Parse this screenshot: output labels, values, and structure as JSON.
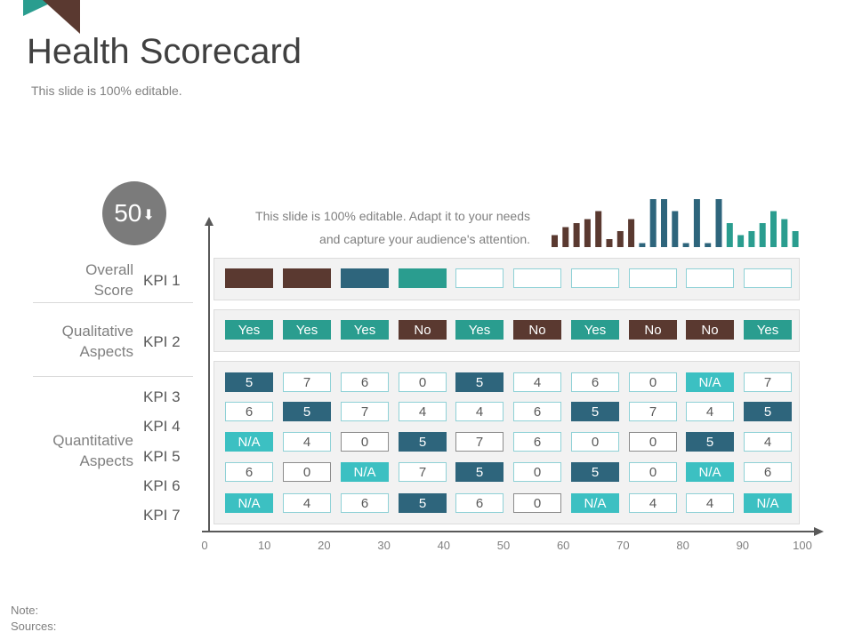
{
  "title": "Health Scorecard",
  "subtitle": "This slide is 100% editable.",
  "score": {
    "value": "50",
    "arrow": "⬇"
  },
  "description": {
    "line1": "This slide is 100% editable. Adapt it to your needs",
    "line2": "and capture your audience's attention."
  },
  "categories": {
    "overall": {
      "line1": "Overall",
      "line2": "Score"
    },
    "qualitative": {
      "line1": "Qualitative",
      "line2": "Aspects"
    },
    "quantitative": {
      "line1": "Quantitative",
      "line2": "Aspects"
    }
  },
  "kpis": [
    "KPI 1",
    "KPI 2",
    "KPI 3",
    "KPI 4",
    "KPI 5",
    "KPI 6",
    "KPI 7"
  ],
  "colors": {
    "teal": "#2a9d8f",
    "brown": "#5a3930",
    "navy": "#2e657c",
    "aqua": "#3cc0c2",
    "outline": "#8fd1d6",
    "gray_outline": "#8c8c8c"
  },
  "kpi1_row": [
    "brown",
    "brown",
    "navy",
    "teal",
    "outline",
    "outline",
    "outline",
    "outline",
    "outline",
    "outline"
  ],
  "kpi2_row": [
    {
      "text": "Yes",
      "style": "teal"
    },
    {
      "text": "Yes",
      "style": "teal"
    },
    {
      "text": "Yes",
      "style": "teal"
    },
    {
      "text": "No",
      "style": "brown"
    },
    {
      "text": "Yes",
      "style": "teal"
    },
    {
      "text": "No",
      "style": "brown"
    },
    {
      "text": "Yes",
      "style": "teal"
    },
    {
      "text": "No",
      "style": "brown"
    },
    {
      "text": "No",
      "style": "brown"
    },
    {
      "text": "Yes",
      "style": "teal"
    }
  ],
  "quant_rows": [
    [
      {
        "text": "5",
        "style": "navy"
      },
      {
        "text": "7",
        "style": "outline"
      },
      {
        "text": "6",
        "style": "outline"
      },
      {
        "text": "0",
        "style": "outline"
      },
      {
        "text": "5",
        "style": "navy"
      },
      {
        "text": "4",
        "style": "outline"
      },
      {
        "text": "6",
        "style": "outline"
      },
      {
        "text": "0",
        "style": "outline"
      },
      {
        "text": "N/A",
        "style": "aqua"
      },
      {
        "text": "7",
        "style": "outline"
      }
    ],
    [
      {
        "text": "6",
        "style": "outline"
      },
      {
        "text": "5",
        "style": "navy"
      },
      {
        "text": "7",
        "style": "outline"
      },
      {
        "text": "4",
        "style": "outline"
      },
      {
        "text": "4",
        "style": "outline"
      },
      {
        "text": "6",
        "style": "outline"
      },
      {
        "text": "5",
        "style": "navy"
      },
      {
        "text": "7",
        "style": "outline"
      },
      {
        "text": "4",
        "style": "outline"
      },
      {
        "text": "5",
        "style": "navy"
      }
    ],
    [
      {
        "text": "N/A",
        "style": "aqua"
      },
      {
        "text": "4",
        "style": "outline"
      },
      {
        "text": "0",
        "style": "gray"
      },
      {
        "text": "5",
        "style": "navy"
      },
      {
        "text": "7",
        "style": "gray"
      },
      {
        "text": "6",
        "style": "outline"
      },
      {
        "text": "0",
        "style": "outline"
      },
      {
        "text": "0",
        "style": "gray"
      },
      {
        "text": "5",
        "style": "navy"
      },
      {
        "text": "4",
        "style": "outline"
      }
    ],
    [
      {
        "text": "6",
        "style": "outline"
      },
      {
        "text": "0",
        "style": "gray"
      },
      {
        "text": "N/A",
        "style": "aqua"
      },
      {
        "text": "7",
        "style": "outline"
      },
      {
        "text": "5",
        "style": "navy"
      },
      {
        "text": "0",
        "style": "outline"
      },
      {
        "text": "5",
        "style": "navy"
      },
      {
        "text": "0",
        "style": "outline"
      },
      {
        "text": "N/A",
        "style": "aqua"
      },
      {
        "text": "6",
        "style": "outline"
      }
    ],
    [
      {
        "text": "N/A",
        "style": "aqua"
      },
      {
        "text": "4",
        "style": "outline"
      },
      {
        "text": "6",
        "style": "outline"
      },
      {
        "text": "5",
        "style": "navy"
      },
      {
        "text": "6",
        "style": "outline"
      },
      {
        "text": "0",
        "style": "gray"
      },
      {
        "text": "N/A",
        "style": "aqua"
      },
      {
        "text": "4",
        "style": "outline"
      },
      {
        "text": "4",
        "style": "outline"
      },
      {
        "text": "N/A",
        "style": "aqua"
      }
    ]
  ],
  "histogram": {
    "values": [
      3,
      5,
      6,
      7,
      9,
      2,
      4,
      7,
      1,
      12,
      12,
      9,
      1,
      12,
      1,
      12,
      6,
      3,
      4,
      6,
      9,
      7,
      4
    ],
    "series_colors": [
      "brown",
      "brown",
      "brown",
      "brown",
      "brown",
      "brown",
      "brown",
      "brown",
      "navy",
      "navy",
      "navy",
      "navy",
      "navy",
      "navy",
      "navy",
      "navy",
      "teal",
      "teal",
      "teal",
      "teal",
      "teal",
      "teal",
      "teal"
    ],
    "max": 12
  },
  "x_axis": {
    "ticks": [
      "0",
      "10",
      "20",
      "30",
      "40",
      "50",
      "60",
      "70",
      "80",
      "90",
      "100"
    ]
  },
  "footer": {
    "note": "Note:",
    "sources": "Sources:"
  }
}
